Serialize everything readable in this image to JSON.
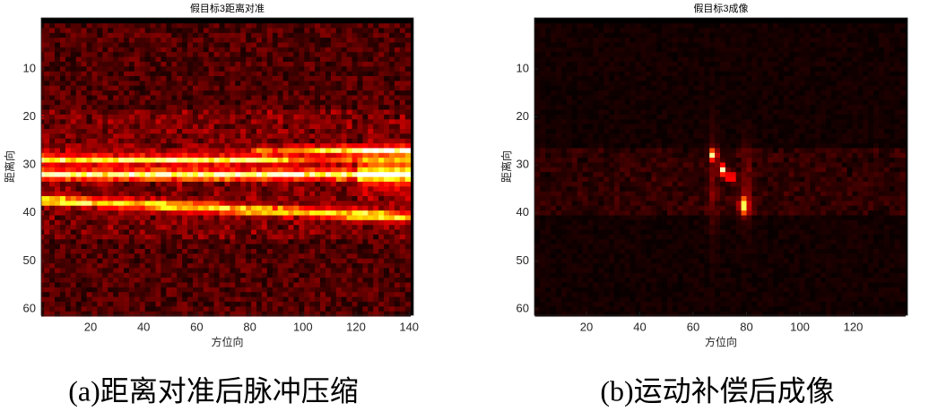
{
  "panels": [
    {
      "title": "假目标3距离对准",
      "x_label": "方位向",
      "y_label": "距离向",
      "x_ticks": [
        20,
        40,
        60,
        80,
        100,
        120,
        140
      ],
      "y_ticks": [
        10,
        20,
        30,
        40,
        50,
        60
      ],
      "caption": "(a)距离对准后脉冲压缩"
    },
    {
      "title": "假目标3成像",
      "x_label": "方位向",
      "y_label": "距离向",
      "x_ticks": [
        20,
        40,
        60,
        80,
        100,
        120
      ],
      "y_ticks": [
        10,
        20,
        30,
        40,
        50,
        60
      ],
      "caption": "(b)运动补偿后成像"
    }
  ]
}
